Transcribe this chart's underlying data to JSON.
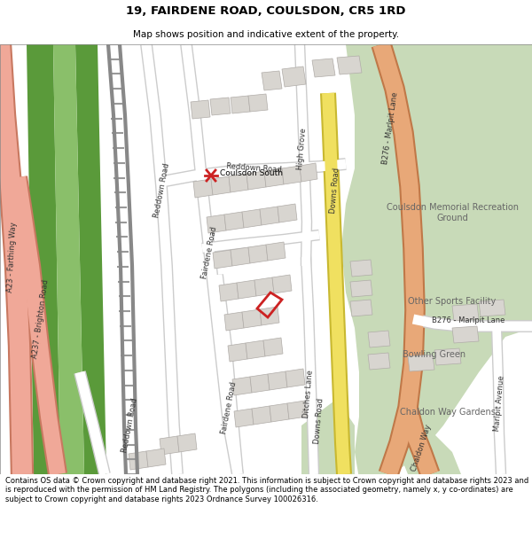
{
  "title_line1": "19, FAIRDENE ROAD, COULSDON, CR5 1RD",
  "title_line2": "Map shows position and indicative extent of the property.",
  "footer_text": "Contains OS data © Crown copyright and database right 2021. This information is subject to Crown copyright and database rights 2023 and is reproduced with the permission of HM Land Registry. The polygons (including the associated geometry, namely x, y co-ordinates) are subject to Crown copyright and database rights 2023 Ordnance Survey 100026316.",
  "bg_color": "#ffffff",
  "map_bg": "#f0ede8",
  "green_light": "#c8dab8",
  "green_dark": "#5a9a3a",
  "green_med": "#8abf6a",
  "building_fill": "#d8d5d0",
  "building_edge": "#b0aca8",
  "road_white": "#ffffff",
  "road_gray": "#cccccc",
  "road_salmon": "#f0a898",
  "road_salmon_edge": "#c87860",
  "road_orange": "#e8a878",
  "road_orange_edge": "#c07848",
  "road_yellow": "#f0e060",
  "road_yellow_edge": "#c8b830",
  "railway_gray": "#aaaaaa",
  "plot_red": "#cc2222",
  "text_dark": "#333333",
  "text_gray": "#666666"
}
